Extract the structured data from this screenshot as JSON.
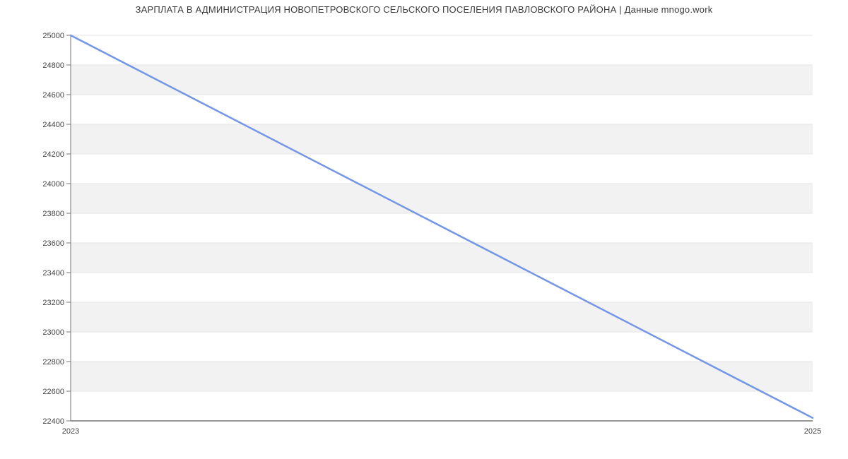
{
  "page": {
    "background": "#ffffff"
  },
  "header": {
    "title": "ЗАРПЛАТА В АДМИНИСТРАЦИЯ НОВОПЕТРОВСКОГО СЕЛЬСКОГО ПОСЕЛЕНИЯ ПАВЛОВСКОГО РАЙОНА | Данные mnogo.work"
  },
  "chart_data": {
    "type": "line",
    "title": "ЗАРПЛАТА В АДМИНИСТРАЦИЯ НОВОПЕТРОВСКОГО СЕЛЬСКОГО ПОСЕЛЕНИЯ ПАВЛОВСКОГО РАЙОНА | Данные mnogo.work",
    "x": [
      2023,
      2025
    ],
    "series": [
      {
        "name": "",
        "values": [
          25000,
          22420
        ]
      }
    ],
    "xlabel": "",
    "ylabel": "",
    "xticks": [
      "2023",
      "2025"
    ],
    "xlim": [
      2023,
      2025
    ],
    "ylim": [
      22400,
      25000
    ],
    "ytick_step": 200,
    "grid": "horizontal-gridlines-with-alternating-bands",
    "band_pattern": "top band white, then alternating gray",
    "legend_position": "none",
    "colors": {
      "line": "#7397e6",
      "band_gray": "#f2f2f2",
      "band_white": "#ffffff",
      "gridline": "#e6e6e6",
      "axis": "#757575",
      "tick_label": "#444444",
      "title": "#3c3c3c"
    }
  }
}
